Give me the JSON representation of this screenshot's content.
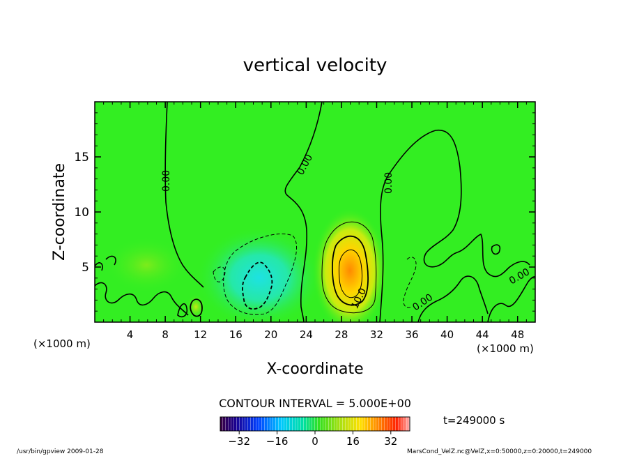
{
  "chart_data": {
    "type": "heatmap",
    "title": "vertical velocity",
    "xlabel": "X-coordinate",
    "ylabel": "Z-coordinate",
    "x_unit_label": "(×1000 m)",
    "xlim": [
      0,
      50
    ],
    "ylim": [
      0,
      20
    ],
    "x_ticks": [
      4,
      8,
      12,
      16,
      20,
      24,
      28,
      32,
      36,
      40,
      44,
      48
    ],
    "y_ticks": [
      5,
      10,
      15
    ],
    "contour_interval_label": "CONTOUR INTERVAL = 5.000E+00",
    "time_label": "t=249000 s",
    "contour_labels": [
      "0.00",
      "0.00",
      "0.00",
      "0.00",
      "0.00",
      "0.00",
      "10.0"
    ],
    "colorbar": {
      "range": [
        -40,
        40
      ],
      "ticks": [
        -32,
        -16,
        0,
        16,
        32
      ]
    },
    "features": [
      {
        "kind": "updraft",
        "x": 29.3,
        "z": 4.2,
        "peak": 20
      },
      {
        "kind": "downdraft",
        "x": 18.6,
        "z": 3.8,
        "peak": -14
      },
      {
        "kind": "updraft",
        "x": 11.6,
        "z": 1.2,
        "peak": 6
      }
    ]
  },
  "footer": {
    "left": "/usr/bin/gpview  2009-01-28",
    "right": "MarsCond_VelZ.nc@VelZ,x=0:50000,z=0:20000,t=249000"
  },
  "colors": {
    "field_background": "#33ee22",
    "zero_contour": "#000000"
  }
}
